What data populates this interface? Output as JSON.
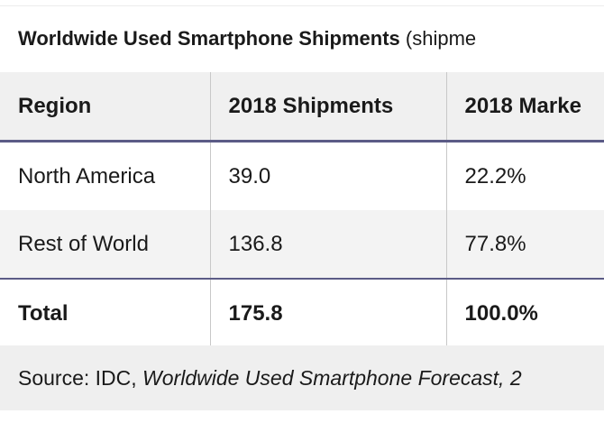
{
  "title": {
    "main": "Worldwide Used Smartphone Shipments",
    "unit": "(shipme"
  },
  "table": {
    "headers": [
      "Region",
      "2018 Shipments",
      "2018 Marke"
    ],
    "rows": [
      [
        "North America",
        "39.0",
        "22.2%"
      ],
      [
        "Rest of World",
        "136.8",
        "77.8%"
      ],
      [
        "Total",
        "175.8",
        "100.0%"
      ]
    ]
  },
  "source": {
    "prefix": "Source: IDC, ",
    "title": "Worldwide Used Smartphone Forecast, 2"
  },
  "colors": {
    "rule": "#5b5b86",
    "header_bg": "#f0f0f0",
    "alt_row_bg": "#f3f3f3"
  }
}
